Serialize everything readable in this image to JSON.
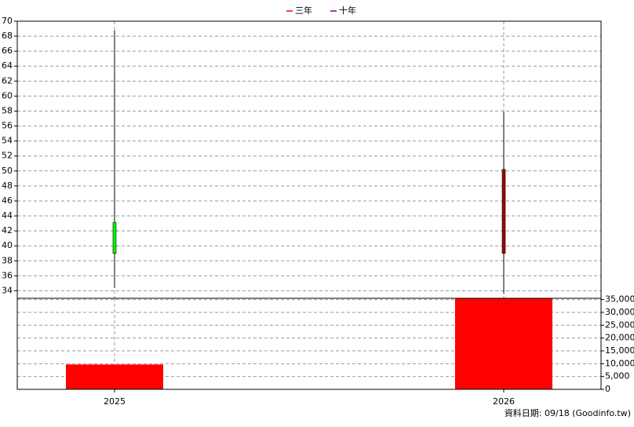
{
  "chart_data": [
    {
      "type": "candlestick",
      "categories": [
        "2025",
        "2026"
      ],
      "open": [
        43.1,
        39.0
      ],
      "high": [
        68.8,
        57.9
      ],
      "low": [
        34.4,
        33.6
      ],
      "close": [
        39.0,
        50.2
      ],
      "up_color": "#a00000",
      "down_color": "#00ff00",
      "series": [
        {
          "name": "三年",
          "color": "#ff0000",
          "values": [
            null,
            null
          ]
        },
        {
          "name": "十年",
          "color": "#800080",
          "values": [
            null,
            null
          ]
        }
      ],
      "ylim": [
        33,
        70
      ],
      "yticks": [
        34,
        36,
        38,
        40,
        42,
        44,
        46,
        48,
        50,
        52,
        54,
        56,
        58,
        60,
        62,
        64,
        66,
        68,
        70
      ],
      "grid": true,
      "legend": "top"
    },
    {
      "type": "bar",
      "categories": [
        "2025",
        "2026"
      ],
      "values": [
        9700,
        35400
      ],
      "color": "#ff0000",
      "ylim": [
        0,
        35500
      ],
      "yticks": [
        0,
        {
          "value": 5000,
          "label": "5,000"
        },
        {
          "value": 10000,
          "label": "10,000"
        },
        {
          "value": 15000,
          "label": "15,000"
        },
        {
          "value": 20000,
          "label": "20,000"
        },
        {
          "value": 25000,
          "label": "25,000"
        },
        {
          "value": 30000,
          "label": "30,000"
        },
        {
          "value": 35000,
          "label": "35,000"
        }
      ],
      "grid": true
    }
  ],
  "footer": "資料日期: 09/18 (Goodinfo.tw)"
}
